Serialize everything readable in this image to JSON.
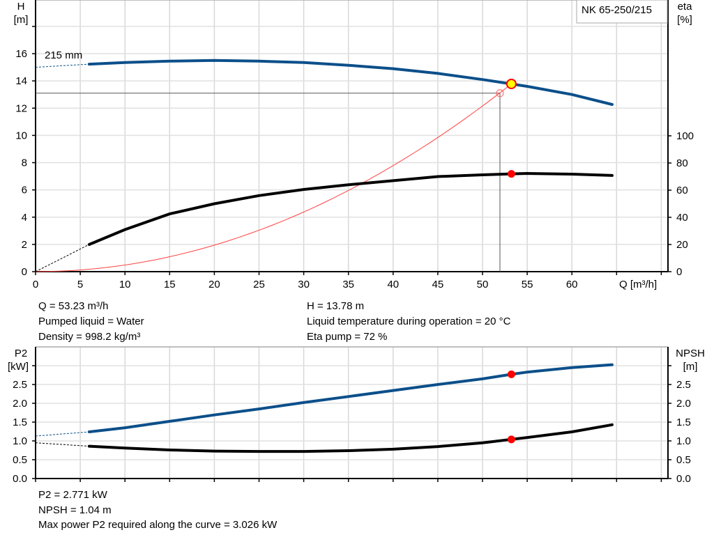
{
  "chart_data": [
    {
      "type": "line",
      "title": "NK 65-250/215",
      "xlabel": "Q [m³/h]",
      "ylabel_left": [
        "H",
        "[m]"
      ],
      "ylabel_right": [
        "eta",
        "[%]"
      ],
      "xlim": [
        0,
        70
      ],
      "ylim_left": [
        0,
        20
      ],
      "ylim_right": [
        0,
        200
      ],
      "x_ticks": [
        0,
        5,
        10,
        15,
        20,
        25,
        30,
        35,
        40,
        45,
        50,
        55,
        60
      ],
      "y_ticks_left": [
        0,
        2,
        4,
        6,
        8,
        10,
        12,
        14,
        16
      ],
      "y_ticks_right": [
        0,
        20,
        40,
        60,
        80,
        100
      ],
      "grid": true,
      "curve_label": "215 mm",
      "series": [
        {
          "id": "head",
          "axis": "left",
          "color": "#0b4f8a",
          "extrapolated": {
            "x": [
              0,
              6
            ],
            "y": [
              15.0,
              15.23
            ]
          },
          "x": [
            6,
            10,
            15,
            20,
            25,
            30,
            35,
            40,
            45,
            50,
            53.23,
            55,
            60,
            64.5
          ],
          "y": [
            15.23,
            15.35,
            15.45,
            15.5,
            15.45,
            15.35,
            15.15,
            14.9,
            14.55,
            14.1,
            13.78,
            13.6,
            13.0,
            12.27
          ]
        },
        {
          "id": "efficiency",
          "axis": "right",
          "color": "#000000",
          "extrapolated": {
            "x": [
              0,
              6
            ],
            "y": [
              0,
              20
            ]
          },
          "x": [
            6,
            10,
            15,
            20,
            25,
            30,
            35,
            40,
            45,
            50,
            53.23,
            55,
            60,
            64.5
          ],
          "y": [
            20,
            31,
            42.5,
            50,
            56,
            60.5,
            64,
            67,
            70,
            71.3,
            72,
            72.3,
            71.8,
            70.8
          ]
        },
        {
          "id": "system-curve",
          "axis": "left",
          "color": "#ff4040",
          "kind": "quadratic",
          "coef": 0.004863,
          "x_range": [
            0,
            53.23
          ]
        }
      ],
      "duty_point": {
        "q": 53.23,
        "h": 13.78,
        "eta": 72,
        "color": "#ffff00"
      },
      "requested_point": {
        "q": 51.95,
        "h": 13.1
      }
    },
    {
      "type": "line",
      "xlim": [
        0,
        70
      ],
      "ylim": [
        0,
        3.4
      ],
      "ylabel_left": [
        "P2",
        "[kW]"
      ],
      "ylabel_right": [
        "NPSH",
        "[m]"
      ],
      "y_ticks": [
        "0.0",
        "0.5",
        "1.0",
        "1.5",
        "2.0",
        "2.5"
      ],
      "grid": true,
      "series": [
        {
          "id": "p2",
          "axis": "left",
          "color": "#0b4f8a",
          "extrapolated": {
            "x": [
              0,
              6
            ],
            "y": [
              1.13,
              1.24
            ]
          },
          "x": [
            6,
            10,
            15,
            20,
            25,
            30,
            35,
            40,
            45,
            50,
            53.23,
            55,
            60,
            64.5
          ],
          "y": [
            1.24,
            1.35,
            1.52,
            1.69,
            1.85,
            2.02,
            2.18,
            2.34,
            2.5,
            2.65,
            2.771,
            2.83,
            2.95,
            3.026
          ]
        },
        {
          "id": "npsh",
          "axis": "right",
          "color": "#000000",
          "extrapolated": {
            "x": [
              0,
              6
            ],
            "y": [
              0.95,
              0.86
            ]
          },
          "x": [
            6,
            10,
            15,
            20,
            25,
            30,
            35,
            40,
            45,
            50,
            53.23,
            55,
            60,
            64.5
          ],
          "y": [
            0.86,
            0.81,
            0.76,
            0.73,
            0.72,
            0.72,
            0.74,
            0.78,
            0.85,
            0.95,
            1.04,
            1.09,
            1.24,
            1.43
          ]
        }
      ],
      "duty_point": {
        "q": 53.23,
        "p2": 2.771,
        "npsh": 1.04,
        "color": "#ff0000"
      }
    }
  ],
  "info": {
    "q": "Q = 53.23 m³/h",
    "liquid": "Pumped liquid = Water",
    "density": "Density = 998.2 kg/m³",
    "h": "H = 13.78 m",
    "temp": "Liquid temperature during operation = 20 °C",
    "eta": "Eta pump = 72 %",
    "p2": "P2 = 2.771 kW",
    "npsh": "NPSH = 1.04 m",
    "max_p2": "Max power P2 required along the curve = 3.026 kW"
  }
}
